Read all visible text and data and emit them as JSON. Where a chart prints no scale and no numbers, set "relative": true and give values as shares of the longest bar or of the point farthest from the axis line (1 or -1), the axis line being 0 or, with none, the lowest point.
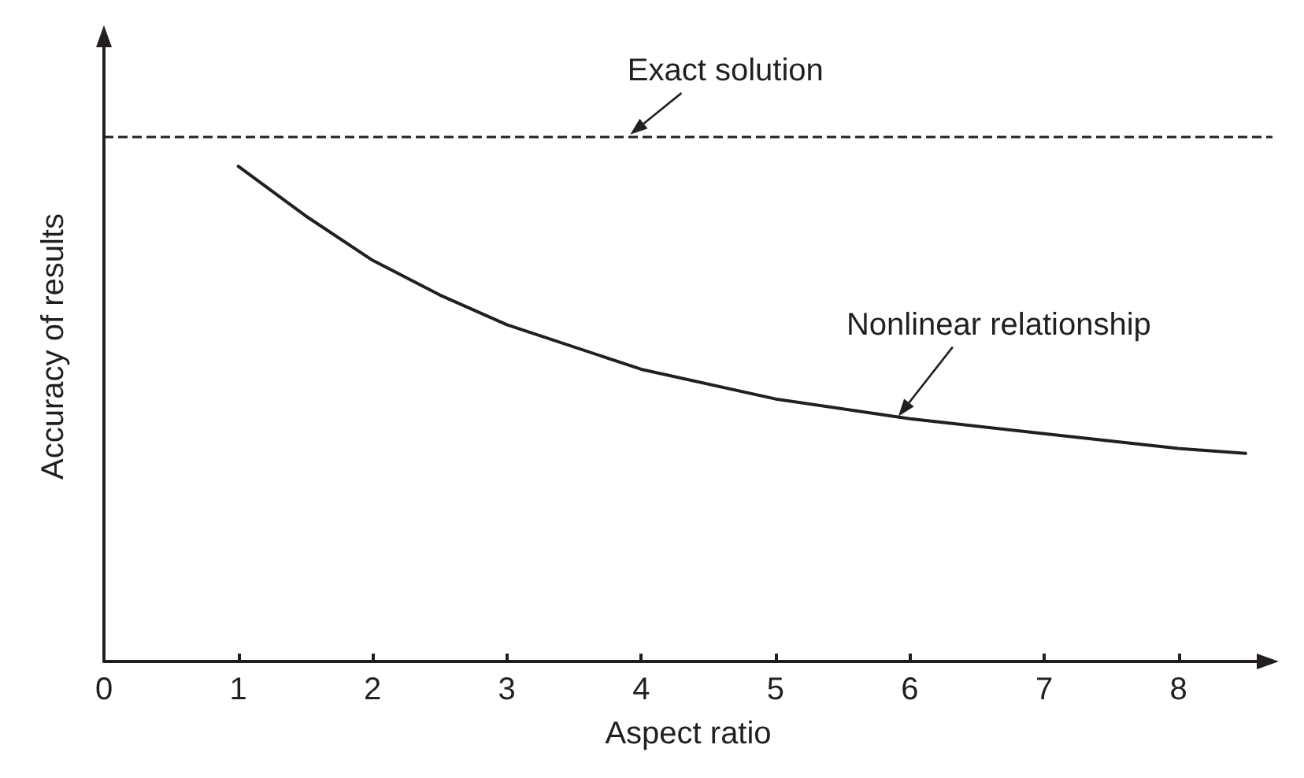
{
  "chart_data": {
    "type": "line",
    "relative": true,
    "xlabel": "Aspect ratio",
    "ylabel": "Accuracy of results",
    "x": [
      1,
      1.5,
      2,
      2.5,
      3,
      4,
      5,
      6,
      7,
      8,
      8.5
    ],
    "series": [
      {
        "color": "#231f20",
        "values": [
          1.0,
          0.9,
          0.81,
          0.74,
          0.68,
          0.59,
          0.53,
          0.49,
          0.46,
          0.43,
          0.42
        ]
      }
    ],
    "xlim": [
      0,
      8.7
    ],
    "xticks": [
      0,
      1,
      2,
      3,
      4,
      5,
      6,
      7,
      8
    ],
    "ref_lines": [
      {
        "axis": "y",
        "value": 1.06,
        "color": "#231f20",
        "line_style": "dashed"
      }
    ],
    "annotations": [
      {
        "text": "Exact solution",
        "x": 3.9,
        "y": 1.06
      },
      {
        "text": "Nonlinear relationship",
        "x": 5.9,
        "y": 0.49
      }
    ],
    "marker": "none",
    "line_style": "solid",
    "grid": false
  }
}
